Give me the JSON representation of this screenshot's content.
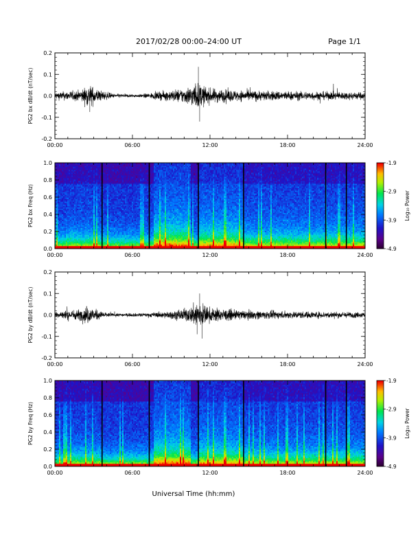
{
  "header": {
    "title": "2017/02/28  00:00–24:00 UT",
    "page": "Page 1/1"
  },
  "xaxis": {
    "label": "Universal Time (hh:mm)",
    "ticks": [
      "00:00",
      "06:00",
      "12:00",
      "18:00",
      "24:00"
    ],
    "range_hours": [
      0,
      24
    ]
  },
  "chart_data": [
    {
      "type": "line",
      "ylabel": "PG2 bx dB/dt (nT/sec)",
      "ylim": [
        -0.2,
        0.2
      ],
      "yticks": [
        "0.2",
        "0.1",
        "0.0",
        "-0.1",
        "-0.2"
      ],
      "yticks_values": [
        0.2,
        0.1,
        0.0,
        -0.1,
        -0.2
      ],
      "x_range_hours": [
        0,
        24
      ],
      "envelope": [
        {
          "x": 0.0,
          "amp": 0.02
        },
        {
          "x": 2.0,
          "amp": 0.03
        },
        {
          "x": 2.6,
          "amp": 0.06
        },
        {
          "x": 3.5,
          "amp": 0.03
        },
        {
          "x": 4.5,
          "amp": 0.012
        },
        {
          "x": 6.5,
          "amp": 0.008
        },
        {
          "x": 8.5,
          "amp": 0.025
        },
        {
          "x": 10.0,
          "amp": 0.04
        },
        {
          "x": 11.0,
          "amp": 0.07
        },
        {
          "x": 12.0,
          "amp": 0.04
        },
        {
          "x": 14.0,
          "amp": 0.03
        },
        {
          "x": 18.0,
          "amp": 0.025
        },
        {
          "x": 24.0,
          "amp": 0.02
        }
      ],
      "peaks": [
        {
          "x": 2.7,
          "y": -0.075
        },
        {
          "x": 11.1,
          "y": 0.135
        },
        {
          "x": 11.2,
          "y": -0.12
        }
      ]
    },
    {
      "type": "heatmap",
      "ylabel": "PG2 bx Freq (Hz)",
      "ylim": [
        0.0,
        1.0
      ],
      "yticks": [
        "1.0",
        "0.8",
        "0.6",
        "0.4",
        "0.2",
        "0.0"
      ],
      "yticks_values": [
        1.0,
        0.8,
        0.6,
        0.4,
        0.2,
        0.0
      ],
      "x_range_hours": [
        0,
        24
      ],
      "colorbar": {
        "title": "Log₁₀ Power",
        "ticks": [
          "-1.9",
          "-2.9",
          "-3.9",
          "-4.9"
        ],
        "tick_values": [
          -1.9,
          -2.9,
          -3.9,
          -4.9
        ],
        "range": [
          -4.9,
          -1.9
        ]
      },
      "data_gaps_hours": [
        3.65,
        7.3,
        11.1,
        14.6,
        20.95,
        22.55
      ],
      "activity_bands": [
        {
          "start": 7.6,
          "end": 10.5,
          "level": 0.9
        },
        {
          "start": 11.2,
          "end": 14.5,
          "level": 0.75
        },
        {
          "start": 14.5,
          "end": 24.0,
          "level": 0.45
        }
      ]
    },
    {
      "type": "line",
      "ylabel": "PG2 by dB/dt (nT/sec)",
      "ylim": [
        -0.2,
        0.2
      ],
      "yticks": [
        "0.2",
        "0.1",
        "0.0",
        "-0.1",
        "-0.2"
      ],
      "yticks_values": [
        0.2,
        0.1,
        0.0,
        -0.1,
        -0.2
      ],
      "x_range_hours": [
        0,
        24
      ],
      "envelope": [
        {
          "x": 0.0,
          "amp": 0.02
        },
        {
          "x": 2.0,
          "amp": 0.03
        },
        {
          "x": 2.5,
          "amp": 0.05
        },
        {
          "x": 3.5,
          "amp": 0.02
        },
        {
          "x": 4.5,
          "amp": 0.008
        },
        {
          "x": 7.0,
          "amp": 0.01
        },
        {
          "x": 9.0,
          "amp": 0.02
        },
        {
          "x": 10.5,
          "amp": 0.04
        },
        {
          "x": 11.0,
          "amp": 0.08
        },
        {
          "x": 12.0,
          "amp": 0.04
        },
        {
          "x": 14.0,
          "amp": 0.025
        },
        {
          "x": 18.0,
          "amp": 0.02
        },
        {
          "x": 24.0,
          "amp": 0.015
        }
      ],
      "peaks": [
        {
          "x": 11.2,
          "y": 0.1
        },
        {
          "x": 11.4,
          "y": -0.11
        },
        {
          "x": 11.0,
          "y": -0.09
        }
      ]
    },
    {
      "type": "heatmap",
      "ylabel": "PG2 by Freq (Hz)",
      "ylim": [
        0.0,
        1.0
      ],
      "yticks": [
        "1.0",
        "0.8",
        "0.6",
        "0.4",
        "0.2",
        "0.0"
      ],
      "yticks_values": [
        1.0,
        0.8,
        0.6,
        0.4,
        0.2,
        0.0
      ],
      "x_range_hours": [
        0,
        24
      ],
      "colorbar": {
        "title": "Log₁₀ Power",
        "ticks": [
          "-1.9",
          "-2.9",
          "-3.9",
          "-4.9"
        ],
        "tick_values": [
          -1.9,
          -2.9,
          -3.9,
          -4.9
        ],
        "range": [
          -4.9,
          -1.9
        ]
      },
      "data_gaps_hours": [
        3.65,
        7.3,
        11.1,
        14.6,
        20.95,
        22.55
      ],
      "activity_bands": [
        {
          "start": 7.6,
          "end": 10.5,
          "level": 0.9
        },
        {
          "start": 11.2,
          "end": 14.5,
          "level": 0.7
        },
        {
          "start": 14.5,
          "end": 24.0,
          "level": 0.4
        }
      ]
    }
  ]
}
